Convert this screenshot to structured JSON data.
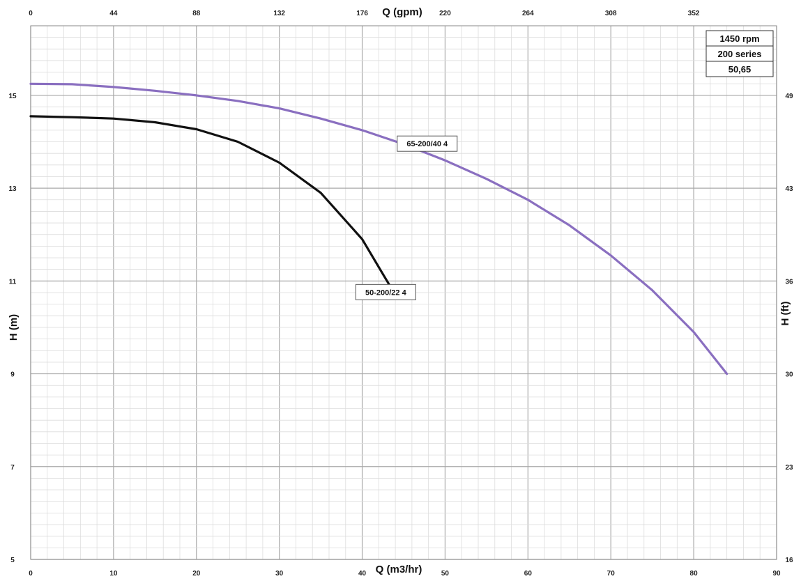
{
  "chart_data": {
    "type": "line",
    "x_axis": {
      "label": "Q (m3/hr)",
      "range": [
        0,
        90
      ],
      "ticks": [
        0,
        10,
        20,
        30,
        40,
        50,
        60,
        70,
        80,
        90
      ]
    },
    "x2_axis": {
      "label": "Q (gpm)",
      "ticks": [
        0,
        44,
        88,
        132,
        176,
        220,
        264,
        308,
        352
      ]
    },
    "y_axis": {
      "label": "H (m)",
      "range": [
        5,
        16.5
      ],
      "ticks": [
        5,
        7,
        9,
        11,
        13,
        15
      ]
    },
    "y2_axis": {
      "label": "H (ft)",
      "ticks": [
        "16",
        "23",
        "30",
        "36",
        "43",
        "49"
      ]
    },
    "grid": true,
    "info_box": [
      "1450 rpm",
      "200 series",
      "50,65"
    ],
    "series": [
      {
        "name": "65-200/40 4",
        "color": "#8a6fc0",
        "points": [
          [
            0,
            15.25
          ],
          [
            5,
            15.24
          ],
          [
            10,
            15.18
          ],
          [
            15,
            15.1
          ],
          [
            20,
            15.0
          ],
          [
            25,
            14.88
          ],
          [
            30,
            14.72
          ],
          [
            35,
            14.5
          ],
          [
            40,
            14.25
          ],
          [
            45,
            13.95
          ],
          [
            50,
            13.6
          ],
          [
            55,
            13.2
          ],
          [
            60,
            12.75
          ],
          [
            65,
            12.2
          ],
          [
            70,
            11.55
          ],
          [
            75,
            10.8
          ],
          [
            80,
            9.9
          ],
          [
            84,
            9.0
          ]
        ]
      },
      {
        "name": "50-200/22 4",
        "color": "#111111",
        "points": [
          [
            0,
            14.55
          ],
          [
            5,
            14.53
          ],
          [
            10,
            14.5
          ],
          [
            15,
            14.42
          ],
          [
            20,
            14.27
          ],
          [
            25,
            14.0
          ],
          [
            30,
            13.55
          ],
          [
            35,
            12.9
          ],
          [
            40,
            11.9
          ],
          [
            42,
            11.3
          ],
          [
            44,
            10.7
          ]
        ]
      }
    ]
  }
}
